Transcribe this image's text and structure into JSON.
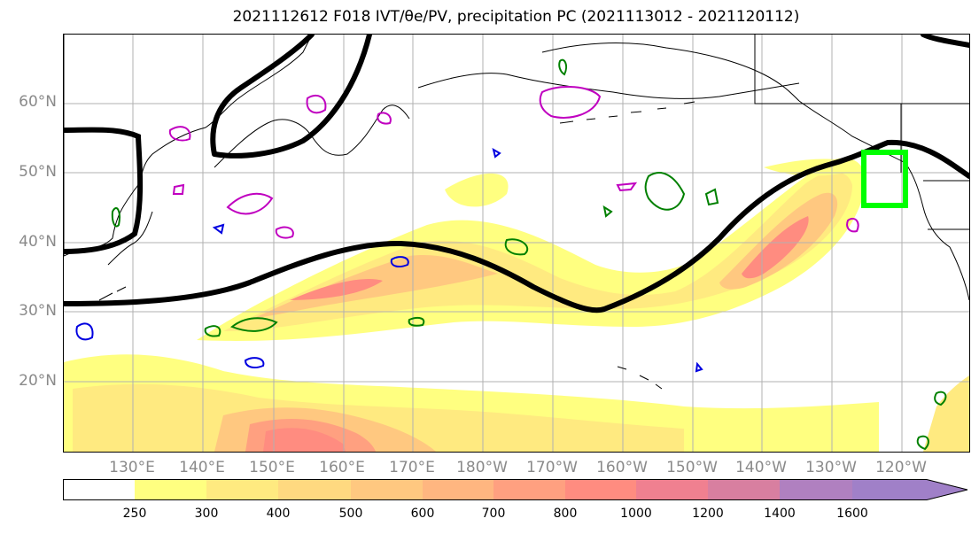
{
  "title": "2021112612 F018 IVT/θe/PV, precipitation PC (2021113012 - 2021120112)",
  "lat_labels": [
    "60°N",
    "50°N",
    "40°N",
    "30°N",
    "20°N"
  ],
  "lon_labels": [
    "130°E",
    "140°E",
    "150°E",
    "160°E",
    "170°E",
    "180°W",
    "170°W",
    "160°W",
    "150°W",
    "140°W",
    "130°W",
    "120°W"
  ],
  "colorbar": {
    "ticks": [
      "250",
      "300",
      "400",
      "500",
      "600",
      "700",
      "800",
      "1000",
      "1200",
      "1400",
      "1600"
    ],
    "colors": [
      "#ffffff",
      "#ffff80",
      "#ffea80",
      "#ffd980",
      "#ffc880",
      "#ffb680",
      "#ffa080",
      "#ff8c80",
      "#f08090",
      "#d87fa0",
      "#b080c0",
      "#a080c8"
    ]
  },
  "legend_colors": {
    "theta_e_contour": "#000000",
    "pv_positive": "#008000",
    "pv_magenta": "#c000c0",
    "pv_blue": "#0000e0",
    "target_box": "#00ff00",
    "coastline": "#000000",
    "grid": "#b0b0b0"
  }
}
